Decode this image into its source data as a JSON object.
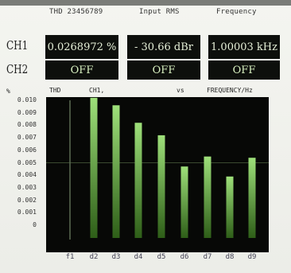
{
  "header": {
    "thd_title": "THD 23456789",
    "rms_title": "Input RMS",
    "freq_title": "Frequency"
  },
  "channels": [
    {
      "label": "CH1",
      "thd": "0.0268972 %",
      "rms": "- 30.66 dBr",
      "freq": "1.00003 kHz"
    },
    {
      "label": "CH2",
      "thd": "OFF",
      "rms": "OFF",
      "freq": "OFF"
    }
  ],
  "plot_header": {
    "left": "THD",
    "channel": "CH1,",
    "vs": "vs",
    "right": "FREQUENCY/Hz",
    "y_unit": "%"
  },
  "colors": {
    "bar_top": "#9ee07a",
    "bar_bottom": "#2e5e18",
    "background": "#070806"
  },
  "chart_data": {
    "type": "bar",
    "categories": [
      "f1",
      "d2",
      "d3",
      "d4",
      "d5",
      "d6",
      "d7",
      "d8",
      "d9"
    ],
    "values": [
      0,
      0.0102,
      0.0096,
      0.0082,
      0.0072,
      0.0047,
      0.0055,
      0.0039,
      0.0054
    ],
    "ylim": [
      0,
      0.01
    ],
    "yticks": [
      "0.010",
      "0.009",
      "0.008",
      "0.007",
      "0.006",
      "0.005",
      "0.004",
      "0.003",
      "0.002",
      "0.001",
      "0"
    ],
    "ylabel": "%",
    "xlabel": "FREQUENCY/Hz"
  }
}
